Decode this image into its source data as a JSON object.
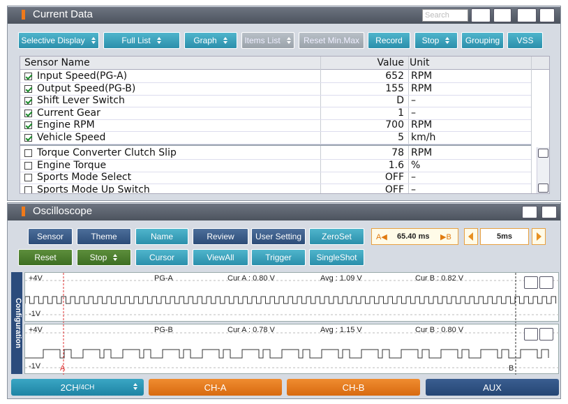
{
  "current_data": {
    "title": "Current Data",
    "search_placeholder": "Search",
    "buttons": [
      "Selective Display",
      "Full List",
      "Graph",
      "Items List",
      "Reset Min.Max",
      "Record",
      "Stop",
      "Grouping",
      "VSS"
    ],
    "table": {
      "headers": [
        "Sensor Name",
        "Value",
        "Unit"
      ],
      "rows": [
        {
          "checked": true,
          "name": "Input Speed(PG-A)",
          "value": "652",
          "unit": "RPM"
        },
        {
          "checked": true,
          "name": "Output Speed(PG-B)",
          "value": "155",
          "unit": "RPM"
        },
        {
          "checked": true,
          "name": "Shift Lever Switch",
          "value": "D",
          "unit": "–"
        },
        {
          "checked": true,
          "name": "Current Gear",
          "value": "1",
          "unit": "–"
        },
        {
          "checked": true,
          "name": "Engine RPM",
          "value": "700",
          "unit": "RPM"
        },
        {
          "checked": true,
          "name": "Vehicle Speed",
          "value": "5",
          "unit": "km/h"
        },
        {
          "checked": false,
          "name": "Torque Converter Clutch Slip",
          "value": "78",
          "unit": "RPM"
        },
        {
          "checked": false,
          "name": "Engine Torque",
          "value": "1.6",
          "unit": "%"
        },
        {
          "checked": false,
          "name": "Sports Mode Select",
          "value": "OFF",
          "unit": "–"
        },
        {
          "checked": false,
          "name": "Sports Mode Up Switch",
          "value": "OFF",
          "unit": "–"
        }
      ]
    }
  },
  "oscilloscope": {
    "title": "Oscilloscope",
    "buttons": [
      [
        "Sensor",
        "Theme",
        "Name",
        "Review",
        "User Setting",
        "ZeroSet"
      ],
      [
        "Reset",
        "Stop",
        "Cursor",
        "ViewAll",
        "Trigger",
        "SingleShot"
      ]
    ],
    "cursor": {
      "a": "A◀",
      "time": "65.40 ms",
      "b": "▶B"
    },
    "time_div": "5ms",
    "side_label": "Configuration",
    "channels": [
      {
        "name": "PG-A",
        "max": "+4V",
        "min": "-1V",
        "cur_a": "Cur A : 0.80 V",
        "avg": "Avg : 1.09 V",
        "cur_b": "Cur B : 0.82 V"
      },
      {
        "name": "PG-B",
        "max": "+4V",
        "min": "-1V",
        "cur_a": "Cur A : 0.78 V",
        "avg": "Avg : 1.15 V",
        "cur_b": "Cur B : 0.80 V"
      }
    ],
    "cursor_markers": [
      "A",
      "B"
    ],
    "tabs": [
      {
        "main": "2CH",
        "sub": "/4CH"
      },
      {
        "main": "CH-A"
      },
      {
        "main": "CH-B"
      },
      {
        "main": "AUX"
      }
    ]
  }
}
